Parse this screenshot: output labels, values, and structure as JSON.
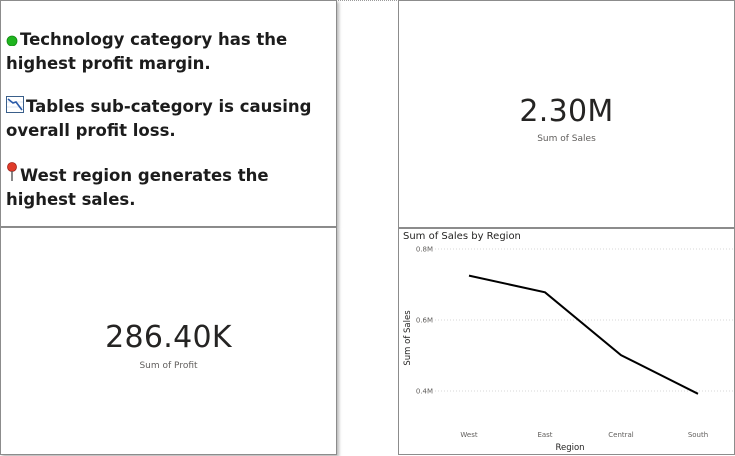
{
  "insights": [
    {
      "icon": "green-circle-icon",
      "text": "Technology category has the highest profit margin."
    },
    {
      "icon": "chart-decreasing-icon",
      "text": "Tables sub-category is causing overall profit loss."
    },
    {
      "icon": "pushpin-icon",
      "text": "West region generates the highest sales."
    }
  ],
  "kpi_sales": {
    "value": "2.30M",
    "label": "Sum of Sales"
  },
  "kpi_profit": {
    "value": "286.40K",
    "label": "Sum of Profit"
  },
  "chart_data": {
    "type": "line",
    "title": "Sum of Sales by Region",
    "xlabel": "Region",
    "ylabel": "Sum of Sales",
    "categories": [
      "West",
      "East",
      "Central",
      "South"
    ],
    "values": [
      0.725,
      0.678,
      0.501,
      0.392
    ],
    "ylim": [
      0.4,
      0.8
    ],
    "yticks": [
      "0.4M",
      "0.6M",
      "0.8M"
    ],
    "ytick_values": [
      0.4,
      0.6,
      0.8
    ],
    "line_color": "#000000",
    "grid": true,
    "legend": false
  },
  "colors": {
    "border": "#8c8c8c",
    "text": "#252423",
    "muted": "#605e5c"
  }
}
